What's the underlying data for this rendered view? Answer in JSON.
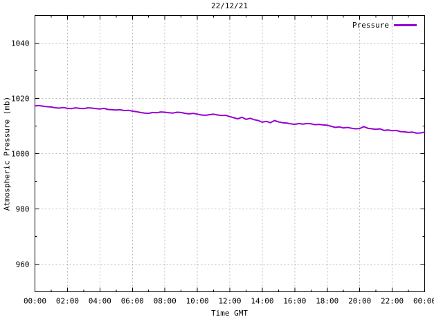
{
  "chart_data": {
    "type": "line",
    "title": "22/12/21",
    "xlabel": "Time GMT",
    "ylabel": "Atmospheric Pressure (mb)",
    "xlim": [
      0,
      24
    ],
    "ylim": [
      950,
      1050
    ],
    "x_tick_hours": [
      0,
      2,
      4,
      6,
      8,
      10,
      12,
      14,
      16,
      18,
      20,
      22,
      24
    ],
    "x_tick_labels": [
      "00:00",
      "02:00",
      "04:00",
      "06:00",
      "08:00",
      "10:00",
      "12:00",
      "14:00",
      "16:00",
      "18:00",
      "20:00",
      "22:00",
      "00:00"
    ],
    "y_ticks": [
      960,
      980,
      1000,
      1020,
      1040
    ],
    "minor_x_step_hours": 1,
    "minor_y_step": 10,
    "grid": true,
    "legend_position": "top-right",
    "colors": {
      "line": "#9400d3",
      "grid": "#b9b9b9",
      "border": "#000000",
      "background": "#ffffff",
      "text": "#000000"
    },
    "series": [
      {
        "name": "Pressure",
        "color": "#9400d3",
        "x_hours": [
          0,
          0.25,
          0.5,
          0.75,
          1,
          1.25,
          1.5,
          1.75,
          2,
          2.25,
          2.5,
          2.75,
          3,
          3.25,
          3.5,
          3.75,
          4,
          4.25,
          4.5,
          4.75,
          5,
          5.25,
          5.5,
          5.75,
          6,
          6.25,
          6.5,
          6.75,
          7,
          7.25,
          7.5,
          7.75,
          8,
          8.25,
          8.5,
          8.75,
          9,
          9.25,
          9.5,
          9.75,
          10,
          10.25,
          10.5,
          10.75,
          11,
          11.25,
          11.5,
          11.75,
          12,
          12.25,
          12.5,
          12.75,
          13,
          13.25,
          13.5,
          13.75,
          14,
          14.25,
          14.5,
          14.75,
          15,
          15.25,
          15.5,
          15.75,
          16,
          16.25,
          16.5,
          16.75,
          17,
          17.25,
          17.5,
          17.75,
          18,
          18.25,
          18.5,
          18.75,
          19,
          19.25,
          19.5,
          19.75,
          20,
          20.25,
          20.5,
          20.75,
          21,
          21.25,
          21.5,
          21.75,
          22,
          22.25,
          22.5,
          22.75,
          23,
          23.25,
          23.5,
          23.75,
          24
        ],
        "y_mb": [
          1017.3,
          1017.4,
          1017.2,
          1017.0,
          1016.9,
          1016.6,
          1016.5,
          1016.7,
          1016.4,
          1016.3,
          1016.6,
          1016.4,
          1016.3,
          1016.6,
          1016.5,
          1016.3,
          1016.2,
          1016.4,
          1016.0,
          1015.9,
          1015.8,
          1015.9,
          1015.6,
          1015.7,
          1015.4,
          1015.2,
          1014.9,
          1014.7,
          1014.6,
          1014.9,
          1014.8,
          1015.1,
          1015.0,
          1014.8,
          1014.7,
          1015.0,
          1014.9,
          1014.6,
          1014.4,
          1014.6,
          1014.3,
          1014.0,
          1013.9,
          1014.1,
          1014.3,
          1014.0,
          1013.8,
          1013.9,
          1013.4,
          1013.0,
          1012.6,
          1013.2,
          1012.4,
          1012.8,
          1012.3,
          1012.0,
          1011.4,
          1011.7,
          1011.2,
          1012.0,
          1011.5,
          1011.2,
          1011.1,
          1010.8,
          1010.6,
          1010.9,
          1010.7,
          1010.9,
          1010.8,
          1010.5,
          1010.6,
          1010.4,
          1010.3,
          1009.9,
          1009.5,
          1009.7,
          1009.3,
          1009.5,
          1009.2,
          1009.0,
          1009.1,
          1009.8,
          1009.2,
          1009.0,
          1008.8,
          1009.0,
          1008.4,
          1008.6,
          1008.3,
          1008.4,
          1008.0,
          1007.9,
          1007.7,
          1007.8,
          1007.4,
          1007.5,
          1007.8
        ]
      }
    ]
  }
}
